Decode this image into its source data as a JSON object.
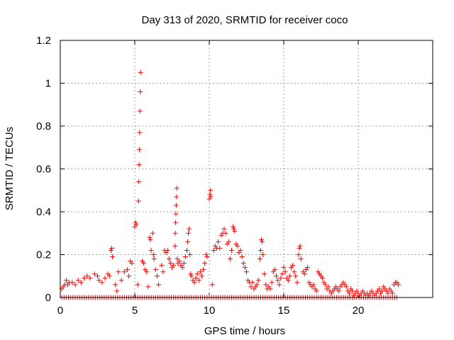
{
  "chart_data": {
    "type": "scatter",
    "title": "Day 313 of 2020, SRMTID for receiver coco",
    "xlabel": "GPS time / hours",
    "ylabel": "SRMTID / TECUs",
    "xlim": [
      0,
      25
    ],
    "ylim": [
      0,
      1.2
    ],
    "xticks": [
      0,
      5,
      10,
      15,
      20
    ],
    "yticks": [
      0,
      0.2,
      0.4,
      0.6,
      0.8,
      1,
      1.2
    ],
    "ytick_labels": [
      "0",
      "0.2",
      "0.4",
      "0.6",
      "0.8",
      "1",
      "1.2"
    ],
    "grid": true,
    "marker": "plus",
    "color": "#ff0000",
    "series": [
      {
        "name": "SRMTID",
        "points": [
          [
            0.1,
            0.04
          ],
          [
            0.2,
            0.05
          ],
          [
            0.3,
            0.06
          ],
          [
            0.4,
            0.08
          ],
          [
            0.5,
            0.06
          ],
          [
            0.6,
            0.07
          ],
          [
            0.8,
            0.07
          ],
          [
            1.0,
            0.06
          ],
          [
            1.2,
            0.08
          ],
          [
            1.4,
            0.07
          ],
          [
            1.6,
            0.09
          ],
          [
            1.8,
            0.1
          ],
          [
            2.0,
            0.09
          ],
          [
            2.3,
            0.11
          ],
          [
            2.5,
            0.1
          ],
          [
            2.6,
            0.08
          ],
          [
            2.8,
            0.07
          ],
          [
            3.0,
            0.09
          ],
          [
            3.2,
            0.11
          ],
          [
            3.3,
            0.1
          ],
          [
            3.4,
            0.22
          ],
          [
            3.45,
            0.23
          ],
          [
            3.5,
            0.19
          ],
          [
            3.7,
            0.06
          ],
          [
            3.8,
            0.03
          ],
          [
            3.9,
            0.12
          ],
          [
            4.1,
            0.08
          ],
          [
            4.3,
            0.12
          ],
          [
            4.5,
            0.13
          ],
          [
            4.6,
            0.1
          ],
          [
            4.7,
            0.17
          ],
          [
            4.8,
            0.16
          ],
          [
            5.0,
            0.33
          ],
          [
            5.05,
            0.35
          ],
          [
            5.1,
            0.34
          ],
          [
            5.2,
            0.06
          ],
          [
            5.25,
            0.45
          ],
          [
            5.27,
            0.54
          ],
          [
            5.29,
            0.62
          ],
          [
            5.31,
            0.69
          ],
          [
            5.33,
            0.77
          ],
          [
            5.35,
            0.87
          ],
          [
            5.37,
            0.96
          ],
          [
            5.39,
            1.05
          ],
          [
            5.5,
            0.17
          ],
          [
            5.6,
            0.16
          ],
          [
            5.7,
            0.13
          ],
          [
            5.8,
            0.12
          ],
          [
            5.9,
            0.05
          ],
          [
            6.0,
            0.28
          ],
          [
            6.05,
            0.27
          ],
          [
            6.1,
            0.22
          ],
          [
            6.2,
            0.3
          ],
          [
            6.25,
            0.2
          ],
          [
            6.3,
            0.18
          ],
          [
            6.4,
            0.13
          ],
          [
            6.5,
            0.1
          ],
          [
            6.6,
            0.06
          ],
          [
            6.8,
            0.15
          ],
          [
            6.9,
            0.12
          ],
          [
            7.0,
            0.22
          ],
          [
            7.1,
            0.21
          ],
          [
            7.2,
            0.22
          ],
          [
            7.3,
            0.18
          ],
          [
            7.4,
            0.16
          ],
          [
            7.5,
            0.14
          ],
          [
            7.6,
            0.15
          ],
          [
            7.7,
            0.24
          ],
          [
            7.72,
            0.3
          ],
          [
            7.74,
            0.35
          ],
          [
            7.76,
            0.39
          ],
          [
            7.78,
            0.43
          ],
          [
            7.8,
            0.47
          ],
          [
            7.82,
            0.51
          ],
          [
            7.85,
            0.18
          ],
          [
            7.9,
            0.16
          ],
          [
            8.0,
            0.17
          ],
          [
            8.1,
            0.15
          ],
          [
            8.2,
            0.14
          ],
          [
            8.3,
            0.16
          ],
          [
            8.4,
            0.19
          ],
          [
            8.5,
            0.22
          ],
          [
            8.55,
            0.26
          ],
          [
            8.6,
            0.3
          ],
          [
            8.65,
            0.32
          ],
          [
            8.7,
            0.2
          ],
          [
            8.75,
            0.11
          ],
          [
            8.8,
            0.1
          ],
          [
            8.9,
            0.08
          ],
          [
            9.0,
            0.07
          ],
          [
            9.1,
            0.09
          ],
          [
            9.2,
            0.11
          ],
          [
            9.3,
            0.08
          ],
          [
            9.4,
            0.12
          ],
          [
            9.5,
            0.1
          ],
          [
            9.6,
            0.13
          ],
          [
            9.7,
            0.16
          ],
          [
            9.8,
            0.2
          ],
          [
            9.85,
            0.19
          ],
          [
            10.0,
            0.46
          ],
          [
            10.05,
            0.48
          ],
          [
            10.08,
            0.5
          ],
          [
            10.1,
            0.47
          ],
          [
            10.2,
            0.06
          ],
          [
            10.3,
            0.22
          ],
          [
            10.4,
            0.24
          ],
          [
            10.5,
            0.23
          ],
          [
            10.6,
            0.26
          ],
          [
            10.7,
            0.23
          ],
          [
            10.8,
            0.29
          ],
          [
            10.9,
            0.3
          ],
          [
            11.0,
            0.32
          ],
          [
            11.1,
            0.3
          ],
          [
            11.2,
            0.25
          ],
          [
            11.3,
            0.26
          ],
          [
            11.4,
            0.18
          ],
          [
            11.5,
            0.22
          ],
          [
            11.6,
            0.33
          ],
          [
            11.65,
            0.32
          ],
          [
            11.7,
            0.31
          ],
          [
            11.8,
            0.25
          ],
          [
            11.9,
            0.24
          ],
          [
            12.0,
            0.21
          ],
          [
            12.1,
            0.22
          ],
          [
            12.2,
            0.19
          ],
          [
            12.3,
            0.16
          ],
          [
            12.4,
            0.14
          ],
          [
            12.5,
            0.12
          ],
          [
            12.6,
            0.08
          ],
          [
            12.7,
            0.07
          ],
          [
            12.8,
            0.05
          ],
          [
            12.9,
            0.07
          ],
          [
            13.0,
            0.04
          ],
          [
            13.1,
            0.05
          ],
          [
            13.2,
            0.06
          ],
          [
            13.3,
            0.08
          ],
          [
            13.4,
            0.18
          ],
          [
            13.45,
            0.22
          ],
          [
            13.5,
            0.27
          ],
          [
            13.55,
            0.26
          ],
          [
            13.6,
            0.2
          ],
          [
            13.7,
            0.11
          ],
          [
            13.8,
            0.06
          ],
          [
            13.9,
            0.04
          ],
          [
            14.0,
            0.05
          ],
          [
            14.1,
            0.04
          ],
          [
            14.2,
            0.07
          ],
          [
            14.3,
            0.12
          ],
          [
            14.4,
            0.13
          ],
          [
            14.5,
            0.1
          ],
          [
            14.6,
            0.08
          ],
          [
            14.7,
            0.06
          ],
          [
            14.8,
            0.09
          ],
          [
            14.9,
            0.11
          ],
          [
            15.0,
            0.14
          ],
          [
            15.1,
            0.12
          ],
          [
            15.2,
            0.09
          ],
          [
            15.3,
            0.08
          ],
          [
            15.4,
            0.1
          ],
          [
            15.5,
            0.14
          ],
          [
            15.6,
            0.15
          ],
          [
            15.7,
            0.12
          ],
          [
            15.8,
            0.1
          ],
          [
            15.9,
            0.07
          ],
          [
            16.0,
            0.2
          ],
          [
            16.05,
            0.23
          ],
          [
            16.1,
            0.24
          ],
          [
            16.15,
            0.18
          ],
          [
            16.3,
            0.12
          ],
          [
            16.4,
            0.11
          ],
          [
            16.5,
            0.13
          ],
          [
            16.6,
            0.14
          ],
          [
            16.7,
            0.07
          ],
          [
            16.8,
            0.06
          ],
          [
            16.9,
            0.05
          ],
          [
            17.0,
            0.06
          ],
          [
            17.1,
            0.04
          ],
          [
            17.2,
            0.03
          ],
          [
            17.3,
            0.12
          ],
          [
            17.4,
            0.11
          ],
          [
            17.5,
            0.1
          ],
          [
            17.6,
            0.09
          ],
          [
            17.7,
            0.07
          ],
          [
            17.8,
            0.06
          ],
          [
            17.9,
            0.04
          ],
          [
            18.0,
            0.05
          ],
          [
            18.1,
            0.03
          ],
          [
            18.2,
            0.02
          ],
          [
            18.3,
            0.03
          ],
          [
            18.4,
            0.04
          ],
          [
            18.5,
            0.05
          ],
          [
            18.6,
            0.04
          ],
          [
            18.7,
            0.03
          ],
          [
            18.8,
            0.05
          ],
          [
            18.9,
            0.06
          ],
          [
            19.0,
            0.07
          ],
          [
            19.1,
            0.06
          ],
          [
            19.2,
            0.05
          ],
          [
            19.3,
            0.03
          ],
          [
            19.4,
            0.02
          ],
          [
            19.5,
            0.04
          ],
          [
            19.6,
            0.03
          ],
          [
            19.7,
            0.01
          ],
          [
            19.8,
            0.02
          ],
          [
            19.9,
            0.03
          ],
          [
            20.0,
            0.02
          ],
          [
            20.1,
            0.01
          ],
          [
            20.2,
            0.02
          ],
          [
            20.3,
            0.03
          ],
          [
            20.4,
            0.02
          ],
          [
            20.5,
            0.01
          ],
          [
            20.6,
            0.02
          ],
          [
            20.7,
            0.01
          ],
          [
            20.8,
            0.02
          ],
          [
            20.9,
            0.03
          ],
          [
            21.0,
            0.02
          ],
          [
            21.1,
            0.01
          ],
          [
            21.2,
            0.02
          ],
          [
            21.3,
            0.03
          ],
          [
            21.4,
            0.04
          ],
          [
            21.5,
            0.02
          ],
          [
            21.6,
            0.03
          ],
          [
            21.7,
            0.05
          ],
          [
            21.8,
            0.04
          ],
          [
            21.9,
            0.03
          ],
          [
            22.0,
            0.02
          ],
          [
            22.1,
            0.04
          ],
          [
            22.2,
            0.03
          ],
          [
            22.3,
            0.02
          ],
          [
            22.4,
            0.06
          ],
          [
            22.5,
            0.07
          ],
          [
            22.6,
            0.07
          ],
          [
            22.7,
            0.06
          ]
        ],
        "baseline": {
          "y": 0,
          "x_start": 0.1,
          "x_end": 22.6,
          "step": 0.15
        }
      }
    ]
  }
}
